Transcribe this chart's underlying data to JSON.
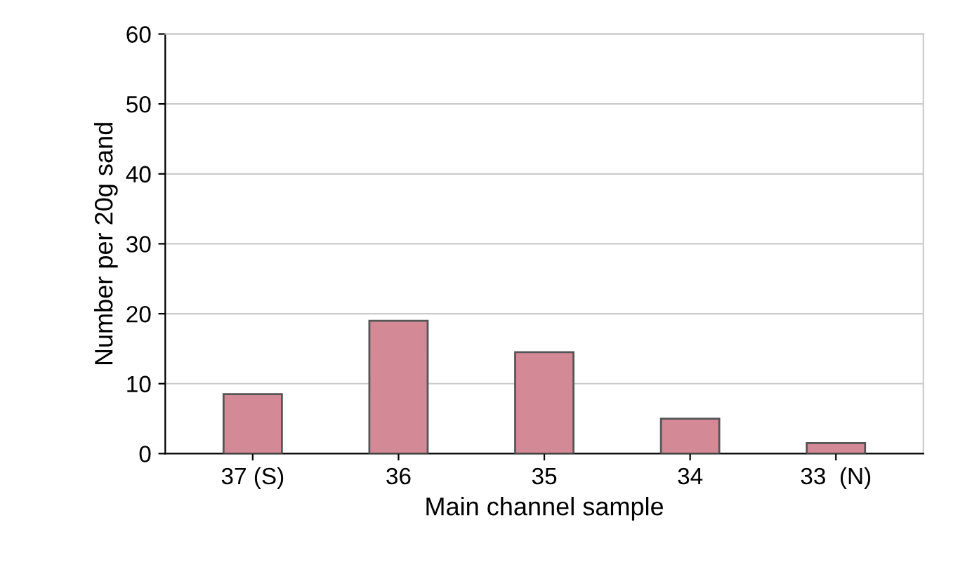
{
  "chart_data": {
    "type": "bar",
    "xlabel": "Main channel sample",
    "ylabel": "Number per 20g sand",
    "categories": [
      "37 (S)",
      "36",
      "35",
      "34",
      "33  (N)"
    ],
    "values": [
      8.5,
      19,
      14.5,
      5,
      1.5
    ],
    "color": "#d48a96",
    "ylim": [
      0,
      60
    ],
    "yticks": [
      0,
      10,
      20,
      30,
      40,
      50,
      60
    ],
    "grid": "y",
    "legend": false
  }
}
